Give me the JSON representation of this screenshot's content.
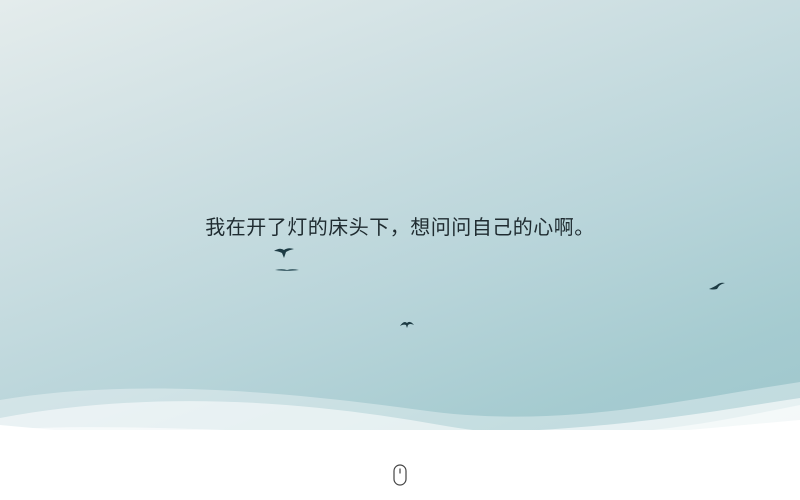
{
  "hero": {
    "quote": "我在开了灯的床头下，想问问自己的心啊。"
  },
  "scroll": {
    "icon": "mouse-scroll-icon"
  },
  "decorations": {
    "bird_icon": "bird-icon",
    "colors": {
      "sky_top": "#e4ecec",
      "sky_bottom": "#9fc7cd",
      "bird": "#1d3b44",
      "wave": "#ffffff"
    }
  }
}
